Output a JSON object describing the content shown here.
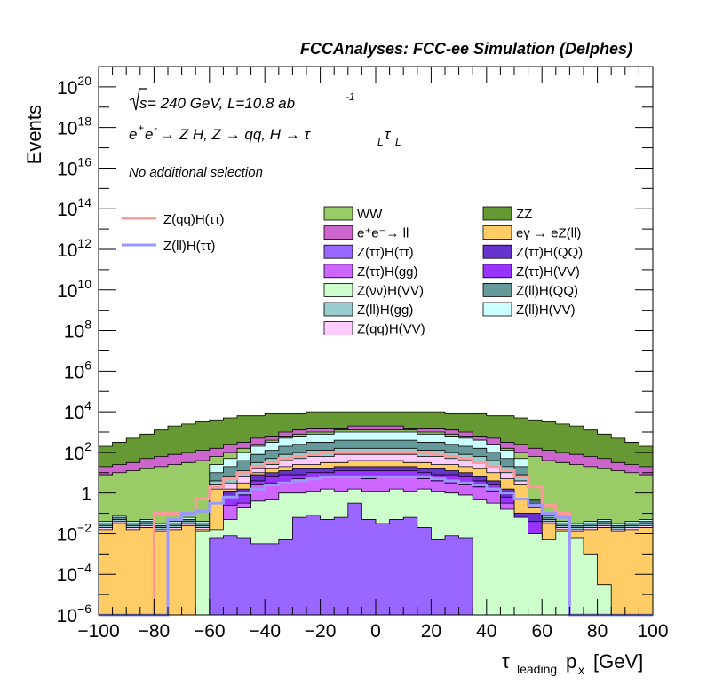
{
  "chart_data": {
    "type": "histogram",
    "title": "FCCAnalyses: FCC-ee Simulation (Delphes)",
    "xlabel": "τ_leading p_x [GeV]",
    "xlabel_main": "τ",
    "xlabel_sub": "leading",
    "xlabel_rest": "p",
    "xlabel_rest_sub": "x",
    "xlabel_unit": "[GeV]",
    "ylabel": "Events",
    "xlim": [
      -100,
      100
    ],
    "ylim": [
      1e-06,
      1e+21
    ],
    "log_y": true,
    "x_ticks": [
      "−100",
      "−80",
      "−60",
      "−40",
      "−20",
      "0",
      "20",
      "40",
      "60",
      "80",
      "100"
    ],
    "y_ticks": [
      {
        "base": "10",
        "exp": "20"
      },
      {
        "base": "10",
        "exp": "18"
      },
      {
        "base": "10",
        "exp": "16"
      },
      {
        "base": "10",
        "exp": "14"
      },
      {
        "base": "10",
        "exp": "12"
      },
      {
        "base": "10",
        "exp": "10"
      },
      {
        "base": "10",
        "exp": "8"
      },
      {
        "base": "10",
        "exp": "6"
      },
      {
        "base": "10",
        "exp": "4"
      },
      {
        "base": "10",
        "exp": "2"
      },
      {
        "base": "1",
        "exp": ""
      },
      {
        "base": "10",
        "exp": "−2"
      },
      {
        "base": "10",
        "exp": "−4"
      },
      {
        "base": "10",
        "exp": "−6"
      }
    ],
    "annotations": {
      "energy_prefix": "s",
      "energy_rest": " = 240 GeV, L=10.8 ab",
      "energy_exp": "-1",
      "process_a": "e",
      "process_a_sup": "+",
      "process_b": "e",
      "process_b_sup": "-",
      "process_c": " → Z H, Z  → qq, H  →  τ",
      "process_c_sub": "L",
      "process_d": "τ",
      "process_d_sub": "L",
      "selection": "No additional selection"
    },
    "legend_lines": [
      {
        "name": "Z(qq)H(ττ)",
        "color": "#ff9999"
      },
      {
        "name": "Z(ll)H(ττ)",
        "color": "#9999ff"
      }
    ],
    "legend_fills": [
      {
        "name": "WW",
        "color": "#99cc66"
      },
      {
        "name": "ZZ",
        "color": "#669933"
      },
      {
        "name": "e⁺e⁻→ ll",
        "color": "#cc66cc"
      },
      {
        "name": "eγ → eZ(ll)",
        "color": "#ffcc66"
      },
      {
        "name": "Z(ττ)H(ττ)",
        "color": "#9966ff"
      },
      {
        "name": "Z(ττ)H(QQ)",
        "color": "#6633cc"
      },
      {
        "name": "Z(ττ)H(gg)",
        "color": "#cc66ff"
      },
      {
        "name": "Z(ττ)H(VV)",
        "color": "#9933ff"
      },
      {
        "name": "Z(νν)H(VV)",
        "color": "#ccffcc"
      },
      {
        "name": "Z(ll)H(QQ)",
        "color": "#669999"
      },
      {
        "name": "Z(ll)H(gg)",
        "color": "#99cccc"
      },
      {
        "name": "Z(ll)H(VV)",
        "color": "#ccffff"
      },
      {
        "name": "Z(qq)H(VV)",
        "color": "#ffccff"
      }
    ],
    "bin_edges_start": -100,
    "bin_width": 5,
    "stack_log10_tops": [
      {
        "name": "Z(ττ)H(ττ)",
        "color": "#9966ff",
        "values": [
          -9,
          -9,
          -9,
          -9,
          -9,
          -9,
          -9,
          -9,
          -2.2,
          -2.1,
          -2.2,
          -2.5,
          -2.5,
          -2.3,
          -1.2,
          -1.1,
          -1.3,
          -1.2,
          -0.5,
          -1.3,
          -1.5,
          -1.3,
          -1.2,
          -1.7,
          -2.3,
          -2.1,
          -2.2,
          -9,
          -9,
          -9,
          -9,
          -9,
          -9,
          -9,
          -9,
          -9,
          -9,
          -9,
          -9,
          -9
        ]
      },
      {
        "name": "Z(νν)H(VV)",
        "color": "#ccffcc",
        "values": [
          -9,
          -9,
          -9,
          -9,
          -9,
          -9,
          -9,
          -1.9,
          -1.8,
          -1.3,
          -0.7,
          -0.4,
          -0.3,
          0,
          0,
          0.1,
          0.2,
          0.1,
          0.2,
          0.1,
          0.1,
          0.2,
          0.1,
          0.2,
          0.1,
          0,
          -0.1,
          -0.3,
          -0.5,
          -0.8,
          -1.2,
          -2,
          -2.3,
          -1.9,
          -2.2,
          -3,
          -4.5,
          -9,
          -9,
          -9
        ]
      },
      {
        "name": "Z(ττ)H(gg)",
        "color": "#cc66ff",
        "values": [
          -9,
          -9,
          -9,
          -9,
          -9,
          -9,
          -9,
          -9,
          -9,
          -0.6,
          -0.5,
          0.4,
          0.5,
          0.5,
          0.7,
          0.7,
          0.8,
          0.8,
          0.8,
          0.7,
          0.8,
          0.8,
          0.8,
          0.7,
          0.6,
          0.5,
          0.4,
          0.3,
          0.1,
          -0.5,
          -1.9,
          -2,
          -9,
          -9,
          -9,
          -9,
          -9,
          -9,
          -9,
          -9
        ]
      },
      {
        "name": "Z(ττ)H(VV)",
        "color": "#9933ff",
        "values": [
          -9,
          -9,
          -9,
          -9,
          -9,
          -9,
          -9,
          -9,
          -9,
          -0.2,
          -0.1,
          0.6,
          0.8,
          0.9,
          0.9,
          1.0,
          1.0,
          1.1,
          1.1,
          1.1,
          1.1,
          1.1,
          1.1,
          1.0,
          0.9,
          0.9,
          0.8,
          0.6,
          0.4,
          -0.2,
          -1.4,
          -1.4,
          -9,
          -9,
          -9,
          -9,
          -9,
          -9,
          -9,
          -9
        ]
      },
      {
        "name": "Z(ττ)H(QQ)",
        "color": "#6633cc",
        "values": [
          -9,
          -9,
          -9,
          -9,
          -9,
          -9,
          -9,
          -9,
          -9,
          0.1,
          0.2,
          0.9,
          1.0,
          1.1,
          1.2,
          1.2,
          1.2,
          1.3,
          1.3,
          1.3,
          1.3,
          1.3,
          1.3,
          1.2,
          1.2,
          1.1,
          1.0,
          0.8,
          0.6,
          0.2,
          -1.0,
          -1.0,
          -9,
          -9,
          -9,
          -9,
          -9,
          -9,
          -9,
          -9
        ]
      },
      {
        "name": "eγ → eZ(ll)",
        "color": "#ffcc66",
        "values": [
          -1.8,
          -1.5,
          -1.8,
          -1.7,
          -1.9,
          -1.8,
          -1.6,
          -1.8,
          0.2,
          0.2,
          0.5,
          1.0,
          1.2,
          1.3,
          1.4,
          1.4,
          1.5,
          1.5,
          1.6,
          1.6,
          1.6,
          1.6,
          1.5,
          1.5,
          1.4,
          1.4,
          1.3,
          1.2,
          1.0,
          0.7,
          0.4,
          -0.7,
          -1.5,
          -1.8,
          -1.9,
          -1.8,
          -1.7,
          -1.9,
          -1.8,
          -1.7
        ]
      },
      {
        "name": "Z(qq)H(VV)",
        "color": "#ffccff",
        "values": [
          -1.7,
          -1.4,
          -1.7,
          -1.6,
          -1.8,
          -1.7,
          -1.5,
          -1.7,
          0.4,
          0.5,
          0.8,
          1.2,
          1.4,
          1.6,
          1.7,
          1.8,
          1.8,
          1.9,
          1.9,
          1.9,
          1.9,
          1.9,
          1.9,
          1.8,
          1.8,
          1.7,
          1.6,
          1.5,
          1.3,
          1.0,
          0.6,
          -0.6,
          -1.4,
          -1.7,
          -1.8,
          -1.7,
          -1.6,
          -1.8,
          -1.7,
          -1.6
        ]
      },
      {
        "name": "Z(ll)H(gg)",
        "color": "#99cccc",
        "values": [
          -1.6,
          -1.3,
          -1.6,
          -1.5,
          -1.7,
          -1.6,
          -1.4,
          -1.6,
          0.6,
          0.8,
          1.1,
          1.5,
          1.7,
          1.9,
          2.0,
          2.1,
          2.1,
          2.2,
          2.2,
          2.2,
          2.2,
          2.2,
          2.2,
          2.1,
          2.1,
          2.0,
          1.9,
          1.8,
          1.6,
          1.3,
          0.9,
          -0.5,
          -1.3,
          -1.6,
          -1.7,
          -1.6,
          -1.5,
          -1.7,
          -1.6,
          -1.5
        ]
      },
      {
        "name": "Z(ll)H(QQ)",
        "color": "#669999",
        "values": [
          -1.5,
          -1.2,
          -1.5,
          -1.4,
          -1.6,
          -1.5,
          -1.3,
          -1.5,
          1.0,
          1.3,
          1.6,
          1.9,
          2.1,
          2.3,
          2.4,
          2.5,
          2.5,
          2.6,
          2.6,
          2.6,
          2.6,
          2.6,
          2.6,
          2.5,
          2.5,
          2.4,
          2.3,
          2.2,
          2.0,
          1.7,
          1.3,
          -0.4,
          -1.2,
          -1.5,
          -1.6,
          -1.5,
          -1.4,
          -1.6,
          -1.5,
          -1.4
        ]
      },
      {
        "name": "Z(ll)H(VV)",
        "color": "#ccffff",
        "values": [
          -1.4,
          -1.1,
          -1.4,
          -1.3,
          -1.5,
          -1.4,
          -1.2,
          -1.4,
          1.4,
          1.7,
          2.0,
          2.3,
          2.5,
          2.7,
          2.8,
          2.9,
          2.9,
          3.0,
          3.0,
          3.0,
          3.0,
          3.0,
          3.0,
          2.9,
          2.9,
          2.8,
          2.7,
          2.6,
          2.4,
          2.1,
          1.7,
          -0.3,
          -1.1,
          -1.4,
          -1.5,
          -1.4,
          -1.3,
          -1.5,
          -1.4,
          -1.3
        ]
      },
      {
        "name": "WW",
        "color": "#99cc66",
        "values": [
          0.9,
          1.0,
          1.1,
          1.2,
          1.3,
          1.4,
          1.5,
          1.6,
          1.8,
          2.0,
          2.2,
          2.4,
          2.6,
          2.8,
          2.9,
          3.0,
          3.0,
          3.1,
          3.1,
          3.1,
          3.1,
          3.1,
          3.1,
          3.0,
          3.0,
          2.9,
          2.8,
          2.6,
          2.4,
          2.2,
          2.0,
          1.8,
          1.6,
          1.5,
          1.4,
          1.3,
          1.2,
          1.1,
          1.0,
          0.9
        ]
      },
      {
        "name": "e⁺e⁻→ ll",
        "color": "#cc66cc",
        "values": [
          1.3,
          1.4,
          1.5,
          1.7,
          1.8,
          1.9,
          2.0,
          2.1,
          2.2,
          2.4,
          2.5,
          2.7,
          2.8,
          3.0,
          3.1,
          3.2,
          3.2,
          3.2,
          3.3,
          3.3,
          3.3,
          3.3,
          3.2,
          3.2,
          3.2,
          3.1,
          3.0,
          2.8,
          2.7,
          2.5,
          2.4,
          2.2,
          2.1,
          2.0,
          1.9,
          1.8,
          1.7,
          1.5,
          1.4,
          1.3
        ]
      },
      {
        "name": "ZZ",
        "color": "#669933",
        "values": [
          2.3,
          2.5,
          2.7,
          2.9,
          3.1,
          3.3,
          3.4,
          3.5,
          3.6,
          3.7,
          3.8,
          3.8,
          3.9,
          3.9,
          3.9,
          4.0,
          4.0,
          4.0,
          4.0,
          4.0,
          4.0,
          4.0,
          4.0,
          4.0,
          4.0,
          3.9,
          3.9,
          3.9,
          3.8,
          3.8,
          3.7,
          3.6,
          3.5,
          3.4,
          3.3,
          3.1,
          2.9,
          2.7,
          2.5,
          2.3
        ]
      }
    ],
    "line_log10": [
      {
        "name": "Z(qq)H(ττ)",
        "color": "#ff9999",
        "values": [
          -9,
          -9,
          -9,
          -9,
          -1,
          -1,
          -1,
          -0.3,
          0.3,
          0.7,
          1.0,
          1.3,
          1.5,
          1.7,
          1.8,
          1.9,
          2.0,
          2.0,
          2.0,
          2.0,
          2.0,
          2.0,
          2.0,
          2.0,
          1.9,
          1.8,
          1.7,
          1.5,
          1.3,
          1.1,
          0.8,
          0.3,
          -0.6,
          -1,
          -9,
          -9,
          -9,
          -9,
          -9,
          -9
        ]
      },
      {
        "name": "Z(ll)H(ττ)",
        "color": "#9999ff",
        "values": [
          -9,
          -9,
          -9,
          -9,
          -9,
          -1.3,
          -1.0,
          -0.9,
          -0.5,
          -0.2,
          0,
          0.2,
          0.4,
          0.5,
          0.6,
          0.7,
          0.8,
          0.8,
          0.8,
          0.8,
          0.8,
          0.8,
          0.8,
          0.8,
          0.7,
          0.6,
          0.5,
          0.4,
          0.2,
          0,
          -0.3,
          -0.6,
          -1.0,
          -1.2,
          -9,
          -9,
          -9,
          -9,
          -9,
          -9
        ]
      }
    ]
  }
}
